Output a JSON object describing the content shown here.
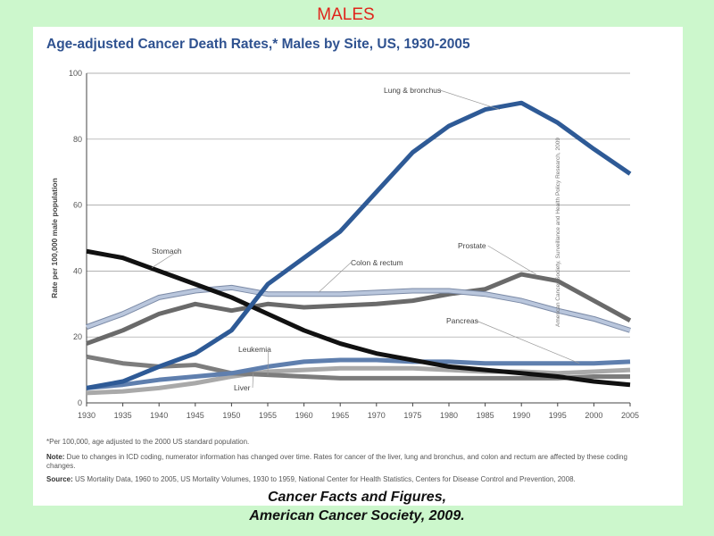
{
  "slide_title": "MALES",
  "caption_line1": "Cancer Facts and Figures,",
  "caption_line2": "American Cancer Society, 2009.",
  "side_credit": "American Cancer Society, Surveillance and Health Policy Research, 2009",
  "notes": {
    "footnote": "*Per 100,000, age adjusted to the 2000 US standard population.",
    "note_label": "Note:",
    "note_text": " Due to changes in ICD coding, numerator information has changed over time. Rates for cancer of the liver, lung and bronchus, and colon and rectum are affected by these coding changes.",
    "source_label": "Source:",
    "source_text": " US Mortality Data, 1960 to 2005, US Mortality Volumes, 1930 to 1959, National Center for Health Statistics, Centers for Disease Control and Prevention, 2008."
  },
  "chart_data": {
    "type": "line",
    "title": "Age-adjusted Cancer Death Rates,* Males by Site, US, 1930-2005",
    "xlabel": "",
    "ylabel": "Rate per 100,000 male population",
    "xlim": [
      1930,
      2005
    ],
    "ylim": [
      0,
      100
    ],
    "x": [
      1930,
      1935,
      1940,
      1945,
      1950,
      1955,
      1960,
      1965,
      1970,
      1975,
      1980,
      1985,
      1990,
      1995,
      2000,
      2005
    ],
    "xticks": [
      "1930",
      "1935",
      "1940",
      "1945",
      "1950",
      "1955",
      "1960",
      "1965",
      "1970",
      "1975",
      "1980",
      "1985",
      "1990",
      "1995",
      "2000",
      "2005"
    ],
    "yticks": [
      "0",
      "20",
      "40",
      "60",
      "80",
      "100"
    ],
    "grid": true,
    "series": [
      {
        "name": "Prostate",
        "color": "#6a6a6a",
        "outline": false,
        "values": [
          18,
          22,
          27,
          30,
          28,
          30,
          29,
          29.5,
          30,
          31,
          33,
          34.5,
          39,
          37,
          31,
          25
        ]
      },
      {
        "name": "Colon & rectum",
        "color": "#b9c6dc",
        "outline": true,
        "values": [
          23,
          27,
          32,
          34,
          35,
          33,
          33,
          33,
          33.5,
          34,
          34,
          33,
          31,
          28,
          25.5,
          22
        ]
      },
      {
        "name": "Liver",
        "color": "#a9a9a9",
        "outline": false,
        "values": [
          3,
          3.5,
          4.5,
          6,
          8,
          9.5,
          10,
          10.5,
          10.5,
          10.5,
          10,
          9.5,
          9.5,
          9,
          9.5,
          10
        ]
      },
      {
        "name": "Leukemia",
        "color": "#7d7d7d",
        "outline": false,
        "values": [
          14,
          12,
          11,
          11.5,
          9,
          8.5,
          8,
          7.5,
          7.5,
          7.5,
          7.5,
          7.5,
          7.5,
          7.5,
          8,
          8
        ]
      },
      {
        "name": "Pancreas",
        "color": "#5f7fae",
        "outline": false,
        "values": [
          4.5,
          5.5,
          7,
          8,
          9,
          11,
          12.5,
          13,
          13,
          12.5,
          12.5,
          12,
          12,
          12,
          12,
          12.5
        ]
      },
      {
        "name": "Stomach",
        "color": "#111111",
        "outline": false,
        "values": [
          46,
          44,
          40,
          36,
          32,
          27,
          22,
          18,
          15,
          13,
          11,
          10,
          9,
          8,
          6.5,
          5.5
        ]
      },
      {
        "name": "Lung & bronchus",
        "color": "#2e5a96",
        "outline": false,
        "values": [
          4.5,
          6.5,
          11,
          15,
          22,
          36,
          44,
          52,
          64,
          76,
          84,
          89,
          91,
          85,
          77,
          69.5
        ]
      }
    ],
    "annotations": [
      {
        "text": "Lung & bronchus",
        "series": "Lung & bronchus"
      },
      {
        "text": "Stomach",
        "series": "Stomach"
      },
      {
        "text": "Colon & rectum",
        "series": "Colon & rectum"
      },
      {
        "text": "Prostate",
        "series": "Prostate"
      },
      {
        "text": "Pancreas",
        "series": "Pancreas"
      },
      {
        "text": "Leukemia",
        "series": "Leukemia"
      },
      {
        "text": "Liver",
        "series": "Liver"
      }
    ]
  }
}
